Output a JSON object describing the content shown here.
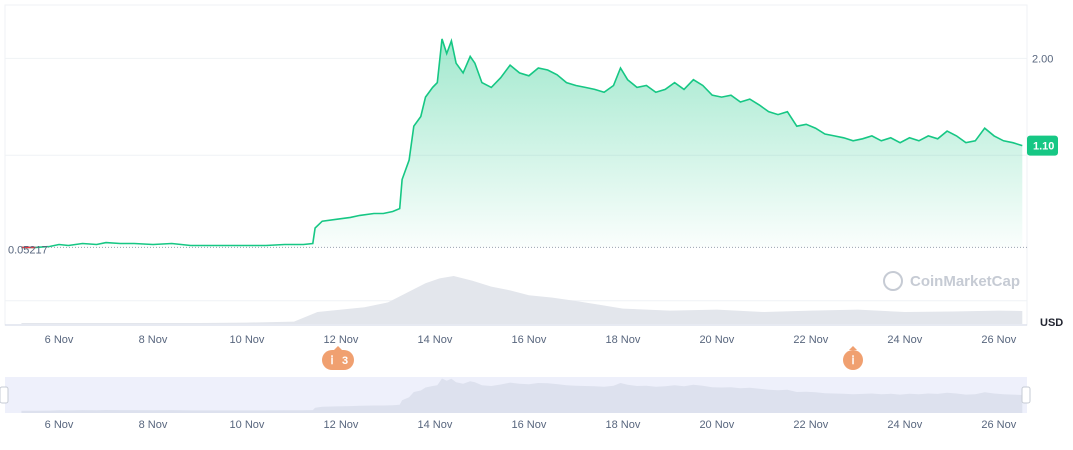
{
  "chart_data": {
    "type": "area",
    "currency_label": "USD",
    "y_ticks": [
      "2.00"
    ],
    "y_range": [
      -0.75,
      2.55
    ],
    "baseline_label": "0.05217",
    "current_price_label": "1.10",
    "x_ticks": [
      "6 Nov",
      "8 Nov",
      "10 Nov",
      "12 Nov",
      "14 Nov",
      "16 Nov",
      "18 Nov",
      "20 Nov",
      "22 Nov",
      "24 Nov",
      "26 Nov"
    ],
    "navigator_ticks": [
      "6 Nov",
      "8 Nov",
      "10 Nov",
      "12 Nov",
      "14 Nov",
      "16 Nov",
      "18 Nov",
      "20 Nov",
      "22 Nov",
      "24 Nov",
      "26 Nov"
    ],
    "watermark": "CoinMarketCap",
    "events": [
      {
        "label": "3",
        "date": "Nov 11.8"
      },
      {
        "label": "",
        "date": "Nov 22.8"
      }
    ],
    "series": [
      {
        "x": [
          5.2,
          5.5,
          5.8,
          6.0,
          6.2,
          6.5,
          6.8,
          7.0,
          7.3,
          7.6,
          8.0,
          8.4,
          8.8,
          9.2,
          9.6,
          10.0,
          10.4,
          10.8,
          11.2,
          11.4,
          11.45,
          11.6,
          11.9,
          12.2,
          12.4,
          12.7,
          12.9,
          13.1,
          13.25,
          13.3,
          13.45,
          13.55,
          13.7,
          13.8,
          13.95,
          14.05,
          14.15,
          14.25,
          14.35,
          14.45,
          14.6,
          14.75,
          14.85,
          15.0,
          15.2,
          15.4,
          15.6,
          15.8,
          16.0,
          16.2,
          16.4,
          16.6,
          16.8,
          17.0,
          17.2,
          17.4,
          17.6,
          17.8,
          17.95,
          18.1,
          18.3,
          18.5,
          18.7,
          18.9,
          19.1,
          19.3,
          19.5,
          19.7,
          19.9,
          20.1,
          20.3,
          20.5,
          20.7,
          20.9,
          21.1,
          21.3,
          21.5,
          21.7,
          21.9,
          22.1,
          22.3,
          22.5,
          22.7,
          22.9,
          23.1,
          23.3,
          23.5,
          23.7,
          23.9,
          24.1,
          24.3,
          24.5,
          24.7,
          24.9,
          25.1,
          25.3,
          25.5,
          25.7,
          25.9,
          26.1,
          26.3,
          26.5
        ],
        "values": [
          0.05,
          0.05,
          0.06,
          0.08,
          0.07,
          0.09,
          0.08,
          0.1,
          0.09,
          0.09,
          0.08,
          0.09,
          0.07,
          0.07,
          0.07,
          0.07,
          0.07,
          0.08,
          0.08,
          0.09,
          0.25,
          0.32,
          0.34,
          0.36,
          0.38,
          0.4,
          0.4,
          0.42,
          0.45,
          0.75,
          0.95,
          1.3,
          1.4,
          1.6,
          1.7,
          1.75,
          2.2,
          2.05,
          2.18,
          1.95,
          1.85,
          2.02,
          1.95,
          1.75,
          1.7,
          1.8,
          1.93,
          1.85,
          1.82,
          1.9,
          1.88,
          1.83,
          1.75,
          1.72,
          1.7,
          1.68,
          1.65,
          1.72,
          1.9,
          1.78,
          1.7,
          1.72,
          1.65,
          1.68,
          1.75,
          1.68,
          1.78,
          1.72,
          1.62,
          1.6,
          1.62,
          1.55,
          1.58,
          1.52,
          1.45,
          1.42,
          1.45,
          1.3,
          1.32,
          1.28,
          1.22,
          1.2,
          1.18,
          1.15,
          1.17,
          1.2,
          1.15,
          1.18,
          1.13,
          1.18,
          1.15,
          1.2,
          1.17,
          1.25,
          1.2,
          1.13,
          1.15,
          1.28,
          1.2,
          1.15,
          1.13,
          1.1
        ]
      }
    ],
    "volume_series": {
      "x": [
        5.2,
        6.0,
        7.0,
        8.0,
        9.0,
        10.0,
        11.0,
        11.5,
        12.0,
        12.5,
        13.0,
        13.5,
        13.8,
        14.1,
        14.4,
        14.8,
        15.2,
        15.6,
        16.0,
        16.5,
        17.0,
        17.5,
        18.0,
        19.0,
        20.0,
        21.0,
        22.0,
        23.0,
        24.0,
        25.0,
        26.0,
        26.5
      ],
      "values": [
        0.02,
        0.02,
        0.02,
        0.02,
        0.02,
        0.03,
        0.05,
        0.25,
        0.3,
        0.35,
        0.45,
        0.7,
        0.85,
        0.95,
        1.0,
        0.9,
        0.78,
        0.7,
        0.6,
        0.55,
        0.48,
        0.4,
        0.32,
        0.28,
        0.3,
        0.25,
        0.28,
        0.3,
        0.25,
        0.26,
        0.28,
        0.27
      ]
    }
  }
}
